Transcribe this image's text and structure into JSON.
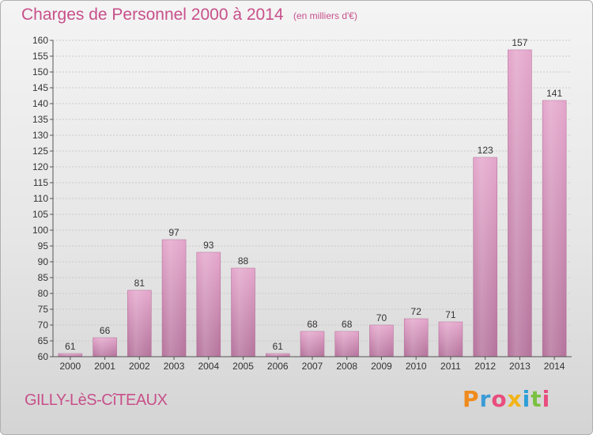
{
  "title": "Charges de Personnel 2000 à 2014",
  "unit_note": "(en milliers d'€)",
  "commune": "GILLY-LèS-CîTEAUX",
  "brand": {
    "text": "Proxiti",
    "letters": [
      "P",
      "r",
      "o",
      "x",
      "i",
      "t",
      "i"
    ],
    "colors": [
      "#f08a1c",
      "#3c9bd6",
      "#e84d7d",
      "#f2b418",
      "#2d9fd6",
      "#7ac142",
      "#e84d7d"
    ]
  },
  "colors": {
    "bar": "#d98cbb",
    "bar_dark": "#b66896",
    "text_accent": "#c8508a"
  },
  "chart_data": {
    "type": "bar",
    "categories": [
      "2000",
      "2001",
      "2002",
      "2003",
      "2004",
      "2005",
      "2006",
      "2007",
      "2008",
      "2009",
      "2010",
      "2011",
      "2012",
      "2013",
      "2014"
    ],
    "values": [
      61,
      66,
      81,
      97,
      93,
      88,
      61,
      68,
      68,
      70,
      72,
      71,
      123,
      157,
      141
    ],
    "ylim": [
      60,
      160
    ],
    "yticks": [
      60,
      65,
      70,
      75,
      80,
      85,
      90,
      95,
      100,
      105,
      110,
      115,
      120,
      125,
      130,
      135,
      140,
      145,
      150,
      155,
      160
    ],
    "grid": true
  }
}
